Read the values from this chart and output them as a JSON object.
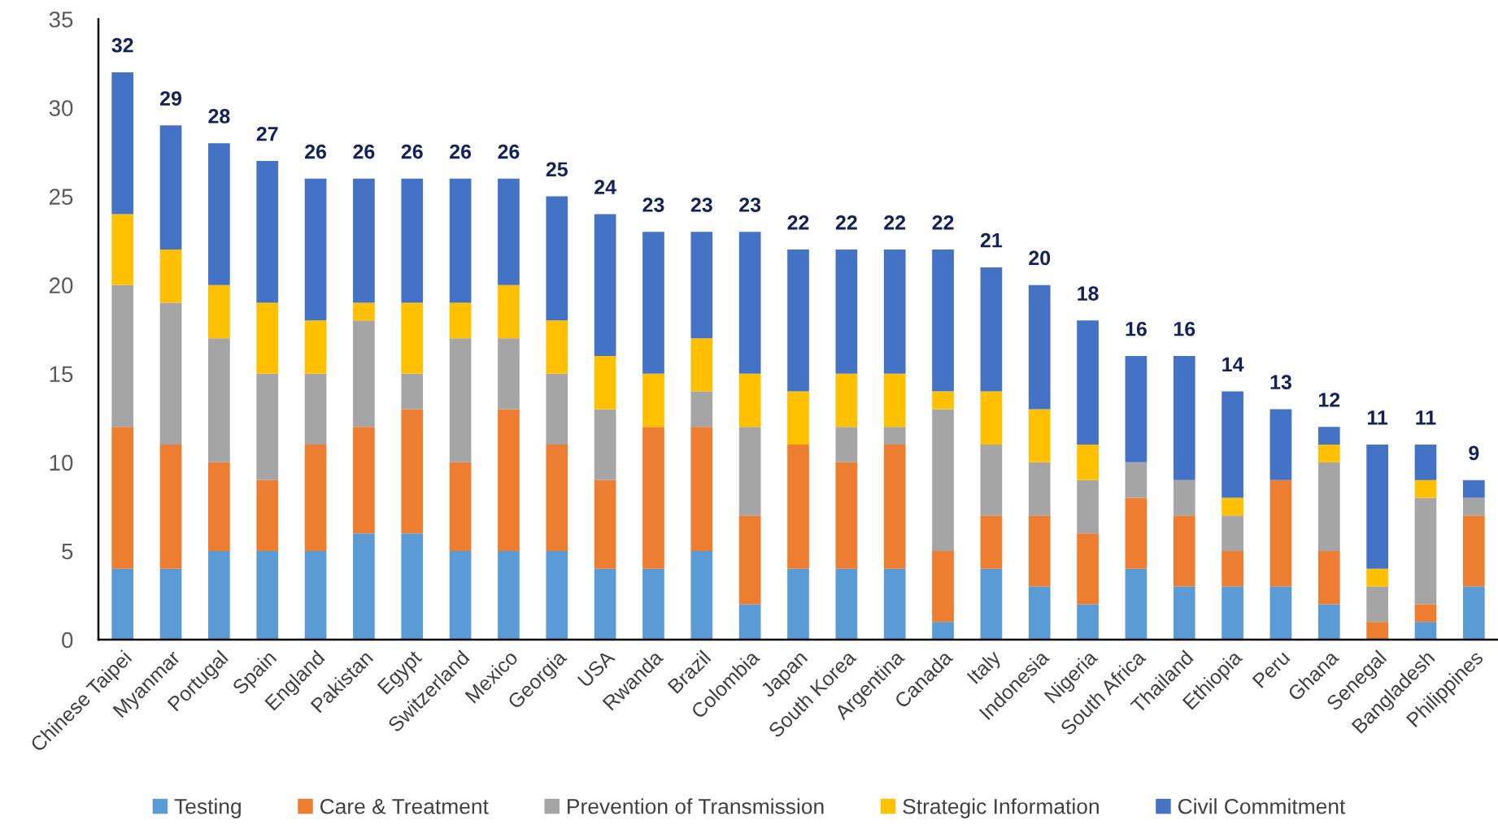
{
  "chart_data": {
    "type": "bar",
    "stacked": true,
    "categories": [
      "Chinese Taipei",
      "Myanmar",
      "Portugal",
      "Spain",
      "England",
      "Pakistan",
      "Egypt",
      "Switzerland",
      "Mexico",
      "Georgia",
      "USA",
      "Rwanda",
      "Brazil",
      "Colombia",
      "Japan",
      "South Korea",
      "Argentina",
      "Canada",
      "Italy",
      "Indonesia",
      "Nigeria",
      "South Africa",
      "Thailand",
      "Ethiopia",
      "Peru",
      "Ghana",
      "Senegal",
      "Bangladesh",
      "Philippines"
    ],
    "series": [
      {
        "name": "Testing",
        "color": "#5b9bd5",
        "values": [
          4,
          4,
          5,
          5,
          5,
          6,
          6,
          5,
          5,
          5,
          4,
          4,
          5,
          2,
          4,
          4,
          4,
          1,
          4,
          3,
          2,
          4,
          3,
          3,
          3,
          2,
          0,
          1,
          3
        ]
      },
      {
        "name": "Care & Treatment",
        "color": "#ed7d31",
        "values": [
          8,
          7,
          5,
          4,
          6,
          6,
          7,
          5,
          8,
          6,
          5,
          8,
          7,
          5,
          7,
          6,
          7,
          4,
          3,
          4,
          4,
          4,
          4,
          2,
          6,
          3,
          1,
          1,
          4
        ]
      },
      {
        "name": "Prevention of Transmission",
        "color": "#a5a5a5",
        "values": [
          8,
          8,
          7,
          6,
          4,
          6,
          2,
          7,
          4,
          4,
          4,
          0,
          2,
          5,
          0,
          2,
          1,
          8,
          4,
          3,
          3,
          2,
          2,
          2,
          0,
          5,
          2,
          6,
          1
        ]
      },
      {
        "name": "Strategic Information",
        "color": "#ffc000",
        "values": [
          4,
          3,
          3,
          4,
          3,
          1,
          4,
          2,
          3,
          3,
          3,
          3,
          3,
          3,
          3,
          3,
          3,
          1,
          3,
          3,
          2,
          0,
          0,
          1,
          0,
          1,
          1,
          1,
          0
        ]
      },
      {
        "name": "Civil Commitment",
        "color": "#4472c4",
        "values": [
          8,
          7,
          8,
          8,
          8,
          7,
          7,
          7,
          6,
          7,
          8,
          8,
          6,
          8,
          8,
          7,
          7,
          8,
          7,
          7,
          7,
          6,
          7,
          6,
          4,
          1,
          7,
          2,
          1
        ]
      }
    ],
    "totals": [
      "32",
      "29",
      "28",
      "27",
      "26",
      "26",
      "26",
      "26",
      "26",
      "25",
      "24",
      "23",
      "23",
      "23",
      "22",
      "22",
      "22",
      "22",
      "21",
      "20",
      "18",
      "16",
      "16",
      "14",
      "13",
      "12",
      "11",
      "11",
      "9"
    ],
    "ylim": [
      0,
      35
    ],
    "yticks": [
      0,
      5,
      10,
      15,
      20,
      25,
      30,
      35
    ],
    "legend": "bottom"
  }
}
